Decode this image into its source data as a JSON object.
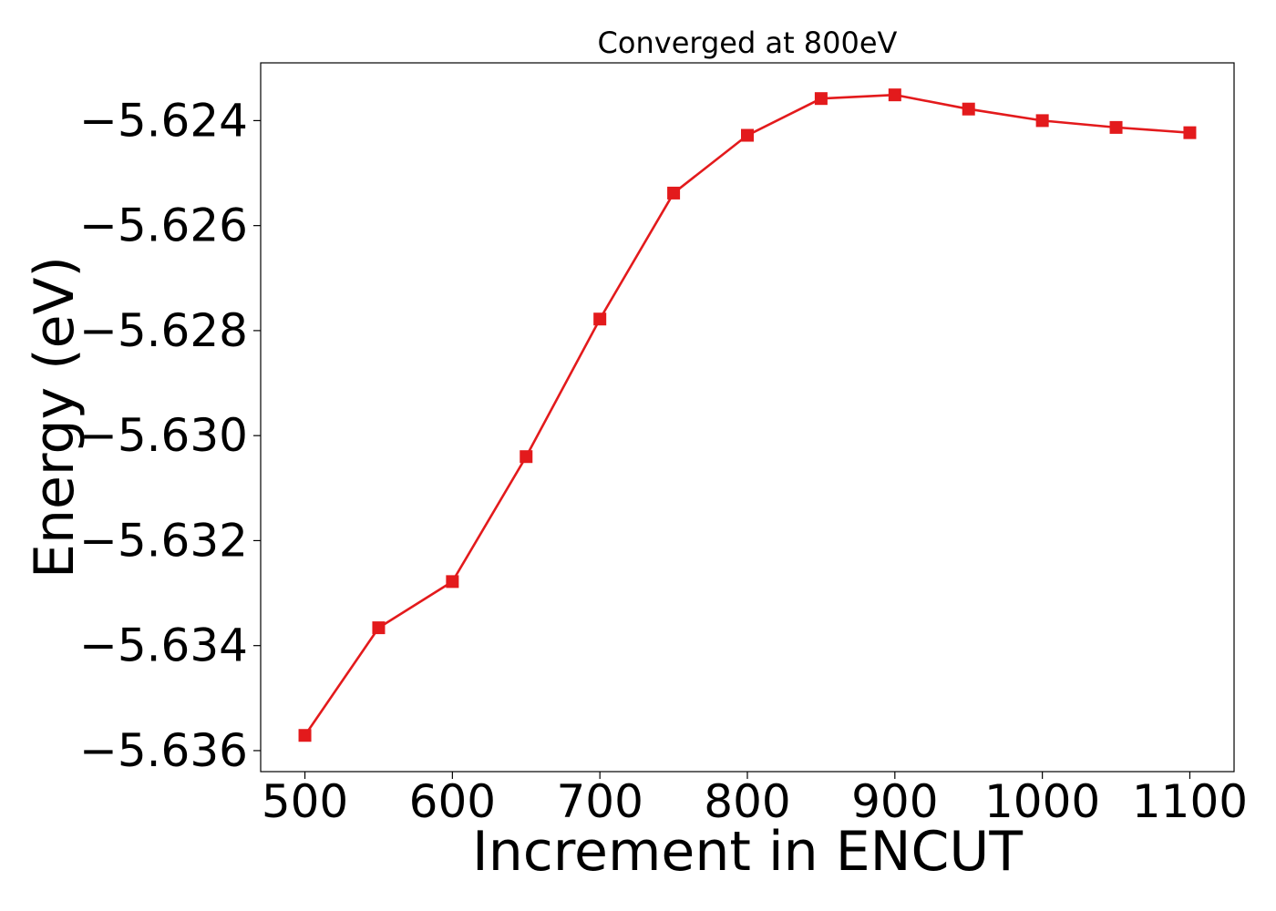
{
  "chart_data": {
    "type": "line",
    "title": "Converged at 800eV",
    "xlabel": "Increment in ENCUT",
    "ylabel": "Energy (eV)",
    "x": [
      500,
      550,
      600,
      650,
      700,
      750,
      800,
      850,
      900,
      950,
      1000,
      1050,
      1100
    ],
    "xlim": [
      470,
      1130
    ],
    "ylim": [
      -5.6364,
      -5.6229
    ],
    "xticks": [
      500,
      600,
      700,
      800,
      900,
      1000,
      1100
    ],
    "yticks": [
      -5.636,
      -5.634,
      -5.632,
      -5.63,
      -5.628,
      -5.626,
      -5.624
    ],
    "ytick_labels": [
      "−5.636",
      "−5.634",
      "−5.632",
      "−5.630",
      "−5.628",
      "−5.626",
      "−5.624"
    ],
    "grid": false,
    "series": [
      {
        "values": [
          -5.63571,
          -5.63366,
          -5.63278,
          -5.6304,
          -5.62778,
          -5.62538,
          -5.62428,
          -5.62358,
          -5.62351,
          -5.62378,
          -5.624,
          -5.62413,
          -5.62423
        ],
        "color": "#e31a1c",
        "marker": "square"
      }
    ]
  }
}
